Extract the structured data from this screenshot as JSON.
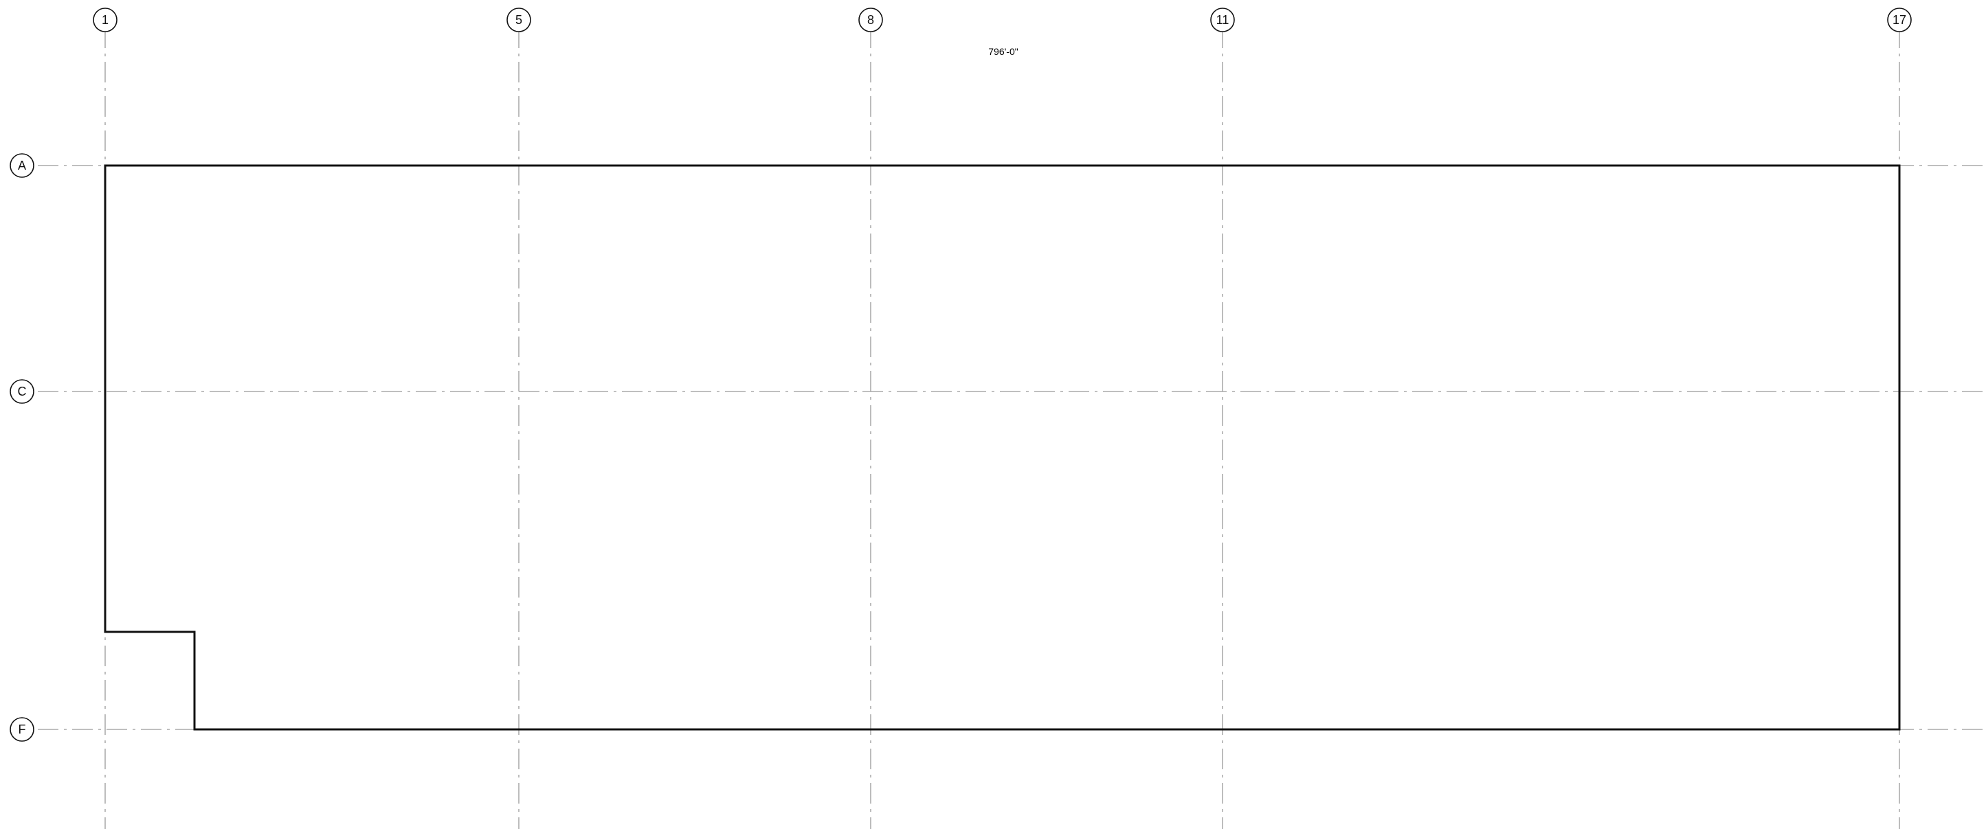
{
  "labels": {
    "top": [
      "1",
      "5",
      "8",
      "11",
      "17"
    ],
    "side": [
      "A",
      "C",
      "F"
    ]
  },
  "overall_dim": "796'-0\""
}
